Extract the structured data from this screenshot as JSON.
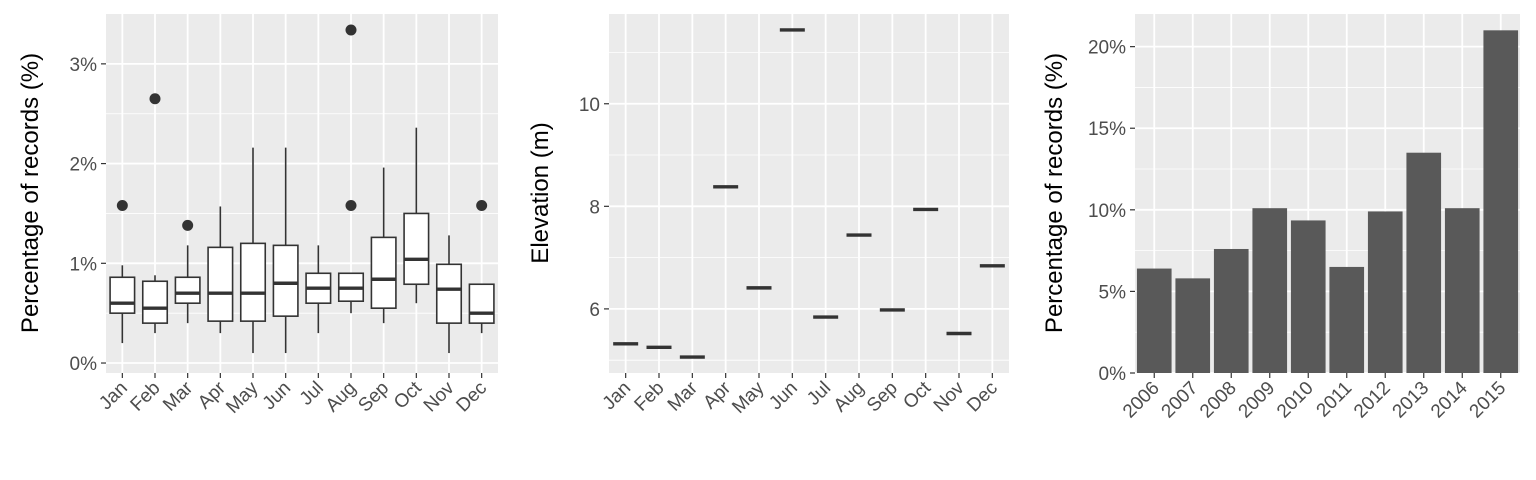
{
  "colors": {
    "panel_bg": "#ebebeb",
    "grid_major": "#ffffff",
    "box_fill": "#ffffff",
    "stroke": "#333333",
    "bar_fill": "#595959"
  },
  "chart_data": [
    {
      "type": "boxplot",
      "ylabel": "Percentage of records (%)",
      "ylim": [
        -0.1,
        3.5
      ],
      "yticks": [
        0,
        1,
        2,
        3
      ],
      "ytick_labels": [
        "0%",
        "1%",
        "2%",
        "3%"
      ],
      "categories": [
        "Jan",
        "Feb",
        "Mar",
        "Apr",
        "May",
        "Jun",
        "Jul",
        "Aug",
        "Sep",
        "Oct",
        "Nov",
        "Dec"
      ],
      "boxes": [
        {
          "min": 0.2,
          "q1": 0.5,
          "median": 0.6,
          "q3": 0.86,
          "max": 0.98,
          "outliers": [
            1.58
          ]
        },
        {
          "min": 0.3,
          "q1": 0.4,
          "median": 0.55,
          "q3": 0.82,
          "max": 0.88,
          "outliers": [
            2.65
          ]
        },
        {
          "min": 0.4,
          "q1": 0.6,
          "median": 0.7,
          "q3": 0.86,
          "max": 1.18,
          "outliers": [
            1.38
          ]
        },
        {
          "min": 0.3,
          "q1": 0.42,
          "median": 0.7,
          "q3": 1.16,
          "max": 1.57,
          "outliers": []
        },
        {
          "min": 0.1,
          "q1": 0.42,
          "median": 0.7,
          "q3": 1.2,
          "max": 2.16,
          "outliers": []
        },
        {
          "min": 0.1,
          "q1": 0.47,
          "median": 0.8,
          "q3": 1.18,
          "max": 2.16,
          "outliers": []
        },
        {
          "min": 0.3,
          "q1": 0.6,
          "median": 0.75,
          "q3": 0.9,
          "max": 1.18,
          "outliers": []
        },
        {
          "min": 0.5,
          "q1": 0.62,
          "median": 0.75,
          "q3": 0.9,
          "max": 0.9,
          "outliers": [
            3.34,
            1.58
          ]
        },
        {
          "min": 0.4,
          "q1": 0.55,
          "median": 0.84,
          "q3": 1.26,
          "max": 1.96,
          "outliers": []
        },
        {
          "min": 0.6,
          "q1": 0.79,
          "median": 1.04,
          "q3": 1.5,
          "max": 2.36,
          "outliers": []
        },
        {
          "min": 0.1,
          "q1": 0.4,
          "median": 0.74,
          "q3": 0.99,
          "max": 1.28,
          "outliers": []
        },
        {
          "min": 0.3,
          "q1": 0.4,
          "median": 0.5,
          "q3": 0.79,
          "max": 0.79,
          "outliers": [
            1.58
          ]
        }
      ]
    },
    {
      "type": "boxplot",
      "ylabel": "Elevation (m)",
      "ylim": [
        4.75,
        11.75
      ],
      "yticks": [
        6,
        8,
        10
      ],
      "ytick_labels": [
        "6",
        "8",
        "10"
      ],
      "categories": [
        "Jan",
        "Feb",
        "Mar",
        "Apr",
        "May",
        "Jun",
        "Jul",
        "Aug",
        "Sep",
        "Oct",
        "Nov",
        "Dec"
      ],
      "values": [
        5.32,
        5.25,
        5.06,
        8.38,
        6.41,
        11.44,
        5.84,
        7.44,
        5.98,
        7.94,
        5.52,
        6.84
      ]
    },
    {
      "type": "bar",
      "ylabel": "Percentage of records (%)",
      "ylim": [
        0,
        22
      ],
      "yticks": [
        0,
        5,
        10,
        15,
        20
      ],
      "ytick_labels": [
        "0%",
        "5%",
        "10%",
        "15%",
        "20%"
      ],
      "categories": [
        "2006",
        "2007",
        "2008",
        "2009",
        "2010",
        "2011",
        "2012",
        "2013",
        "2014",
        "2015"
      ],
      "values": [
        6.4,
        5.8,
        7.6,
        10.1,
        9.35,
        6.5,
        9.9,
        13.5,
        10.1,
        21.0
      ]
    }
  ]
}
